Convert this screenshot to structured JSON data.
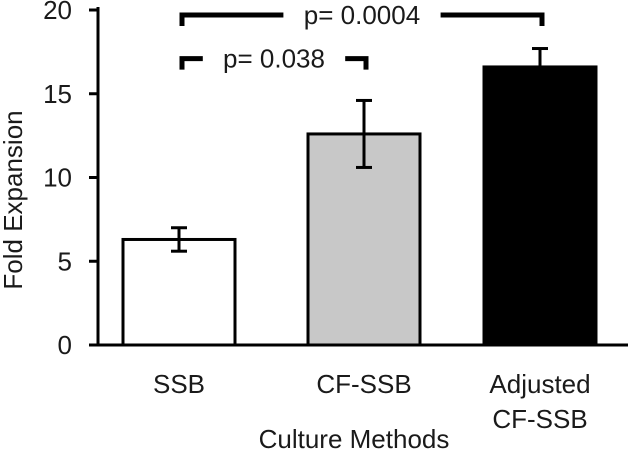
{
  "chart_data": {
    "type": "bar",
    "title": "",
    "xlabel": "Culture Methods",
    "ylabel": "Fold Expansion",
    "ylim": [
      0,
      20
    ],
    "yticks": [
      0,
      5,
      10,
      15,
      20
    ],
    "grid": false,
    "categories": [
      {
        "lines": [
          "SSB"
        ]
      },
      {
        "lines": [
          "CF-SSB"
        ]
      },
      {
        "lines": [
          "Adjusted",
          "CF-SSB"
        ]
      }
    ],
    "values": [
      6.3,
      12.6,
      16.6
    ],
    "errors": [
      0.7,
      2.0,
      1.1
    ],
    "colors": {
      "bar_fills": [
        "#ffffff",
        "#c8c8c8",
        "#000000"
      ],
      "bar_stroke": "#000000",
      "axis": "#000000",
      "bracket": "#000000"
    },
    "annotations": [
      {
        "label": "p= 0.038",
        "from": 0,
        "to": 1,
        "y": 17.1
      },
      {
        "label": "p= 0.0004",
        "from": 0,
        "to": 2,
        "y": 19.7
      }
    ]
  }
}
